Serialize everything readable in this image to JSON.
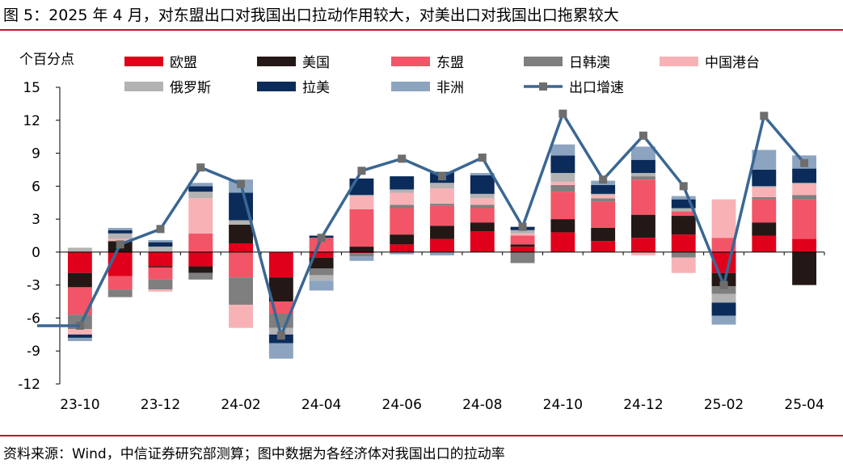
{
  "title": "图 5：2025 年 4 月，对东盟出口对我国出口拉动作用较大，对美出口对我国出口拖累较大",
  "source": "资料来源：Wind，中信证券研究部测算；图中数据为各经济体对我国出口的拉动率",
  "chart_data": {
    "type": "bar",
    "stacked": true,
    "unit_label": "个百分点",
    "ylim": [
      -12,
      15
    ],
    "yticks": [
      15,
      12,
      9,
      6,
      3,
      0,
      -3,
      -6,
      -9,
      -12
    ],
    "categories": [
      "23-10",
      "23-11",
      "23-12",
      "24-01",
      "24-02",
      "24-03",
      "24-04",
      "24-05",
      "24-06",
      "24-07",
      "24-08",
      "24-09",
      "24-10",
      "24-11",
      "24-12",
      "25-01",
      "25-02",
      "25-03",
      "25-04"
    ],
    "xtick_labels": [
      "23-10",
      "23-12",
      "24-02",
      "24-04",
      "24-06",
      "24-08",
      "24-10",
      "24-12",
      "25-02",
      "25-04"
    ],
    "legend_position": "top",
    "series": [
      {
        "name": "欧盟",
        "color": "#e0001b",
        "values": [
          -1.9,
          -2.2,
          -1.3,
          -1.3,
          0.8,
          -2.3,
          -0.5,
          -0.1,
          0.7,
          1.2,
          1.9,
          0.5,
          1.8,
          1.0,
          1.3,
          1.6,
          -1.9,
          1.5,
          1.2
        ]
      },
      {
        "name": "美国",
        "color": "#231815",
        "values": [
          -1.3,
          1.0,
          -0.1,
          -0.6,
          1.7,
          -2.2,
          -1.0,
          0.5,
          0.9,
          1.2,
          0.8,
          0.2,
          1.2,
          1.2,
          2.1,
          1.7,
          -1.2,
          1.2,
          -3.0
        ]
      },
      {
        "name": "东盟",
        "color": "#f25567",
        "values": [
          -2.5,
          -1.2,
          -1.1,
          1.7,
          -2.3,
          -1.1,
          1.3,
          3.4,
          2.4,
          1.8,
          1.3,
          0.8,
          2.5,
          2.4,
          3.2,
          0.4,
          1.3,
          2.1,
          3.6
        ]
      },
      {
        "name": "日韩澳",
        "color": "#7f7f7f",
        "values": [
          -1.3,
          -0.7,
          -0.9,
          -0.6,
          -2.5,
          -1.3,
          -0.6,
          -0.3,
          0.3,
          0.2,
          0.3,
          -1.0,
          0.6,
          0.3,
          0.3,
          -0.5,
          -0.7,
          0.2,
          0.4
        ]
      },
      {
        "name": "中国港台",
        "color": "#f8b2b6",
        "values": [
          -0.5,
          0.2,
          -0.2,
          3.2,
          -2.1,
          0.0,
          0.0,
          1.2,
          1.1,
          1.4,
          0.6,
          0.2,
          0.3,
          0.3,
          -0.3,
          -1.4,
          3.5,
          0.9,
          1.0
        ]
      },
      {
        "name": "俄罗斯",
        "color": "#b3b3b3",
        "values": [
          0.4,
          0.5,
          0.5,
          0.6,
          0.4,
          -0.6,
          -0.5,
          0.1,
          0.3,
          0.5,
          0.4,
          0.3,
          0.8,
          0.1,
          0.3,
          0.3,
          -0.8,
          0.1,
          0.1
        ]
      },
      {
        "name": "拉美",
        "color": "#0b2c5a",
        "values": [
          -0.3,
          0.3,
          0.4,
          0.5,
          2.5,
          -0.8,
          0.2,
          1.5,
          1.2,
          1.0,
          1.7,
          0.3,
          1.6,
          0.8,
          1.2,
          0.8,
          -1.2,
          1.5,
          1.3
        ]
      },
      {
        "name": "非洲",
        "color": "#8ca4bf",
        "values": [
          -0.3,
          0.2,
          0.2,
          0.3,
          1.2,
          -1.4,
          -0.9,
          -0.4,
          -0.2,
          -0.3,
          0.2,
          0.0,
          1.0,
          0.4,
          1.2,
          0.3,
          -0.8,
          1.8,
          1.2
        ]
      }
    ],
    "line": {
      "name": "出口增速",
      "color": "#3a6793",
      "marker_color": "#6d6d6d",
      "values": [
        -6.7,
        0.7,
        2.1,
        7.7,
        6.2,
        -7.6,
        1.3,
        7.4,
        8.5,
        6.9,
        8.6,
        2.3,
        12.6,
        6.6,
        10.6,
        6.0,
        -3.0,
        12.4,
        8.1
      ]
    }
  }
}
